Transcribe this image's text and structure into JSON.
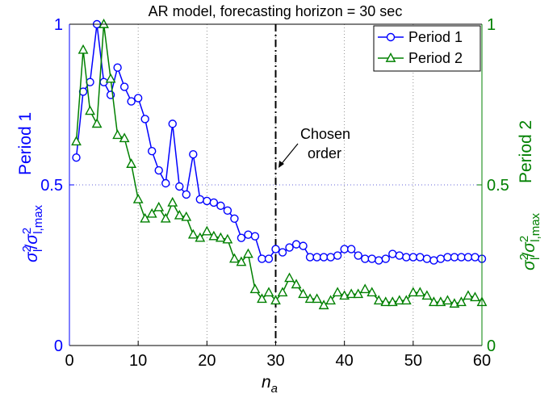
{
  "chart_data": {
    "type": "line",
    "title": "AR model, forecasting horizon = 30 sec",
    "xlabel": {
      "main": "n",
      "sub": "a"
    },
    "ylabel_left": {
      "series_name": "Period 1",
      "sigma": "σ",
      "sup": "2",
      "sub_num": "l",
      "slash": "/",
      "sub_den": "l,max",
      "color": "#0000ff"
    },
    "ylabel_right": {
      "series_name": "Period 2",
      "sigma": "σ",
      "sup": "2",
      "sub_num": "l",
      "slash": "/",
      "sub_den": "l,max",
      "color": "#008000"
    },
    "xlim": [
      0,
      60
    ],
    "ylim": [
      0,
      1
    ],
    "xticks": [
      "0",
      "10",
      "20",
      "30",
      "40",
      "50",
      "60"
    ],
    "yticks_left": [
      "0",
      "0.5",
      "1"
    ],
    "yticks_right": [
      "0",
      "0.5",
      "1"
    ],
    "grid": true,
    "legend_position": "top-right",
    "annotation": {
      "line1": "Chosen",
      "line2": "order",
      "x": 30
    },
    "series": [
      {
        "name": "Period 1",
        "color": "#0000ff",
        "marker": "circle",
        "x": [
          1,
          2,
          3,
          4,
          5,
          6,
          7,
          8,
          9,
          10,
          11,
          12,
          13,
          14,
          15,
          16,
          17,
          18,
          19,
          20,
          21,
          22,
          23,
          24,
          25,
          26,
          27,
          28,
          29,
          30,
          31,
          32,
          33,
          34,
          35,
          36,
          37,
          38,
          39,
          40,
          41,
          42,
          43,
          44,
          45,
          46,
          47,
          48,
          49,
          50,
          51,
          52,
          53,
          54,
          55,
          56,
          57,
          58,
          59,
          60
        ],
        "values": [
          0.585,
          0.79,
          0.82,
          1.0,
          0.82,
          0.78,
          0.865,
          0.805,
          0.76,
          0.77,
          0.705,
          0.605,
          0.545,
          0.505,
          0.69,
          0.495,
          0.47,
          0.595,
          0.455,
          0.45,
          0.445,
          0.435,
          0.42,
          0.395,
          0.335,
          0.345,
          0.34,
          0.27,
          0.27,
          0.3,
          0.29,
          0.305,
          0.315,
          0.31,
          0.275,
          0.275,
          0.275,
          0.275,
          0.28,
          0.3,
          0.3,
          0.28,
          0.27,
          0.27,
          0.265,
          0.27,
          0.285,
          0.28,
          0.275,
          0.275,
          0.275,
          0.27,
          0.265,
          0.27,
          0.275,
          0.275,
          0.275,
          0.275,
          0.275,
          0.27
        ]
      },
      {
        "name": "Period 2",
        "color": "#008000",
        "marker": "triangle",
        "x": [
          1,
          2,
          3,
          4,
          5,
          6,
          7,
          8,
          9,
          10,
          11,
          12,
          13,
          14,
          15,
          16,
          17,
          18,
          19,
          20,
          21,
          22,
          23,
          24,
          25,
          26,
          27,
          28,
          29,
          30,
          31,
          32,
          33,
          34,
          35,
          36,
          37,
          38,
          39,
          40,
          41,
          42,
          43,
          44,
          45,
          46,
          47,
          48,
          49,
          50,
          51,
          52,
          53,
          54,
          55,
          56,
          57,
          58,
          59,
          60
        ],
        "values": [
          0.635,
          0.92,
          0.73,
          0.69,
          1.0,
          0.83,
          0.655,
          0.645,
          0.565,
          0.455,
          0.395,
          0.41,
          0.43,
          0.395,
          0.445,
          0.405,
          0.4,
          0.345,
          0.335,
          0.355,
          0.34,
          0.335,
          0.33,
          0.27,
          0.26,
          0.285,
          0.175,
          0.145,
          0.165,
          0.14,
          0.165,
          0.21,
          0.19,
          0.16,
          0.145,
          0.145,
          0.125,
          0.14,
          0.165,
          0.155,
          0.16,
          0.16,
          0.175,
          0.165,
          0.14,
          0.135,
          0.135,
          0.14,
          0.14,
          0.165,
          0.165,
          0.155,
          0.135,
          0.135,
          0.14,
          0.13,
          0.135,
          0.155,
          0.15,
          0.135
        ]
      }
    ]
  }
}
